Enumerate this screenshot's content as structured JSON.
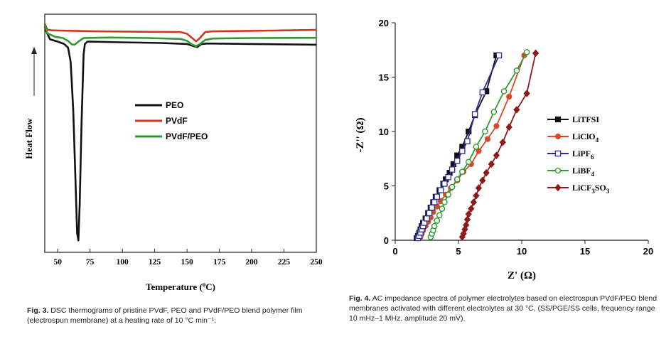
{
  "chart_data": [
    {
      "type": "line",
      "title": "",
      "xlabel": "Temperature (°C)",
      "ylabel": "Heat Flow",
      "xlim": [
        40,
        250
      ],
      "ylim": [
        0,
        1
      ],
      "y_ticks_shown": false,
      "x_ticks": [
        "50",
        "75",
        "100",
        "125",
        "150",
        "175",
        "200",
        "225",
        "250"
      ],
      "x_tick_values": [
        50,
        75,
        100,
        125,
        150,
        175,
        200,
        225,
        250
      ],
      "legend": "center-right",
      "grid": false,
      "series": [
        {
          "name": "PEO",
          "color": "#111111",
          "points": [
            [
              40,
              0.95
            ],
            [
              41,
              0.93
            ],
            [
              44,
              0.895
            ],
            [
              50,
              0.885
            ],
            [
              55,
              0.875
            ],
            [
              58,
              0.86
            ],
            [
              60,
              0.8
            ],
            [
              62,
              0.6
            ],
            [
              63.5,
              0.35
            ],
            [
              65,
              0.08
            ],
            [
              66,
              0.05
            ],
            [
              67,
              0.2
            ],
            [
              68.5,
              0.55
            ],
            [
              70,
              0.83
            ],
            [
              71,
              0.875
            ],
            [
              73,
              0.885
            ],
            [
              100,
              0.882
            ],
            [
              130,
              0.879
            ],
            [
              150,
              0.875
            ],
            [
              155,
              0.866
            ],
            [
              158,
              0.862
            ],
            [
              161,
              0.874
            ],
            [
              165,
              0.877
            ],
            [
              200,
              0.875
            ],
            [
              250,
              0.872
            ]
          ]
        },
        {
          "name": "PVdF",
          "color": "#cc3a1e",
          "points": [
            [
              40,
              0.96
            ],
            [
              42,
              0.935
            ],
            [
              46,
              0.932
            ],
            [
              80,
              0.928
            ],
            [
              120,
              0.926
            ],
            [
              145,
              0.925
            ],
            [
              150,
              0.918
            ],
            [
              154,
              0.9
            ],
            [
              157,
              0.886
            ],
            [
              160,
              0.9
            ],
            [
              164,
              0.925
            ],
            [
              170,
              0.928
            ],
            [
              200,
              0.93
            ],
            [
              250,
              0.934
            ]
          ]
        },
        {
          "name": "PVdF/PEO",
          "color": "#2f9a2f",
          "points": [
            [
              40,
              0.955
            ],
            [
              42,
              0.92
            ],
            [
              48,
              0.905
            ],
            [
              54,
              0.9
            ],
            [
              58,
              0.888
            ],
            [
              61,
              0.873
            ],
            [
              63,
              0.872
            ],
            [
              66,
              0.885
            ],
            [
              70,
              0.9
            ],
            [
              90,
              0.902
            ],
            [
              120,
              0.9
            ],
            [
              145,
              0.896
            ],
            [
              150,
              0.888
            ],
            [
              154,
              0.872
            ],
            [
              157,
              0.866
            ],
            [
              160,
              0.875
            ],
            [
              164,
              0.892
            ],
            [
              170,
              0.898
            ],
            [
              200,
              0.9
            ],
            [
              250,
              0.901
            ]
          ]
        }
      ],
      "annotations": [
        "up-arrow"
      ]
    },
    {
      "type": "scatter",
      "title": "",
      "xlabel": "Z' (Ω)",
      "ylabel": "-Z'' (Ω)",
      "xlim": [
        0,
        20
      ],
      "ylim": [
        0,
        20
      ],
      "x_ticks": [
        "0",
        "5",
        "10",
        "15",
        "20"
      ],
      "x_tick_values": [
        0,
        5,
        10,
        15,
        20
      ],
      "y_ticks": [
        "0",
        "5",
        "10",
        "15",
        "20"
      ],
      "y_tick_values": [
        0,
        5,
        10,
        15,
        20
      ],
      "legend": "center-right",
      "grid": false,
      "series": [
        {
          "name": "LiTFSI",
          "label_main": "LiTFSI",
          "label_sub": "",
          "label_tail": "",
          "label_sub2": "",
          "color": "#111111",
          "marker": "square-filled",
          "x": [
            1.7,
            1.8,
            1.9,
            2.0,
            2.1,
            2.2,
            2.4,
            2.6,
            2.8,
            3.0,
            3.2,
            3.5,
            3.8,
            4.0,
            4.3,
            4.6,
            4.9,
            5.3,
            5.8,
            6.3,
            7.2,
            8.0
          ],
          "y": [
            0.2,
            0.4,
            0.7,
            1.0,
            1.3,
            1.6,
            2.0,
            2.5,
            3.0,
            3.5,
            4.0,
            4.6,
            5.2,
            5.6,
            6.2,
            7.0,
            7.8,
            8.6,
            10.0,
            11.5,
            13.7,
            17.0
          ]
        },
        {
          "name": "LiClO4",
          "label_main": "LiClO",
          "label_sub": "4",
          "label_tail": "",
          "label_sub2": "",
          "color": "#d44a2a",
          "marker": "circle-filled",
          "x": [
            2.0,
            2.1,
            2.2,
            2.4,
            2.6,
            2.8,
            3.0,
            3.3,
            3.6,
            4.0,
            4.4,
            4.9,
            5.4,
            6.0,
            6.6,
            7.3,
            8.0,
            9.0,
            10.2
          ],
          "y": [
            0.3,
            0.6,
            0.9,
            1.3,
            1.7,
            2.1,
            2.6,
            3.1,
            3.6,
            4.2,
            4.8,
            5.5,
            6.3,
            7.0,
            8.2,
            9.3,
            10.5,
            13.2,
            17.0
          ]
        },
        {
          "name": "LiPF6",
          "label_main": "LiPF",
          "label_sub": "6",
          "label_tail": "",
          "label_sub2": "",
          "color": "#2d2d9a",
          "marker": "square-open",
          "x": [
            1.8,
            1.9,
            2.0,
            2.1,
            2.2,
            2.3,
            2.5,
            2.7,
            2.9,
            3.1,
            3.3,
            3.6,
            3.9,
            4.2,
            4.5,
            4.9,
            5.3,
            5.7,
            6.3,
            6.9,
            8.2
          ],
          "y": [
            0.2,
            0.4,
            0.7,
            1.0,
            1.3,
            1.6,
            2.0,
            2.5,
            3.0,
            3.5,
            4.0,
            4.6,
            5.2,
            5.8,
            6.5,
            7.3,
            8.2,
            9.1,
            11.6,
            13.6,
            17.0
          ]
        },
        {
          "name": "LiBF4",
          "label_main": "LiBF",
          "label_sub": "4",
          "label_tail": "",
          "label_sub2": "",
          "color": "#2f9a2f",
          "marker": "circle-open",
          "x": [
            2.8,
            2.9,
            3.0,
            3.1,
            3.3,
            3.5,
            3.7,
            3.9,
            4.2,
            4.5,
            4.9,
            5.3,
            5.8,
            6.4,
            7.1,
            7.8,
            8.6,
            9.6,
            10.4
          ],
          "y": [
            0.3,
            0.6,
            0.9,
            1.3,
            1.8,
            2.3,
            2.9,
            3.5,
            4.2,
            4.9,
            5.6,
            6.3,
            7.2,
            8.6,
            10.0,
            11.8,
            13.7,
            15.6,
            17.3
          ]
        },
        {
          "name": "LiCF3SO3",
          "label_main": "LiCF",
          "label_sub": "3",
          "label_tail": "SO",
          "label_sub2": "3",
          "color": "#8b1a1a",
          "marker": "diamond-filled",
          "x": [
            5.3,
            5.4,
            5.5,
            5.6,
            5.7,
            5.8,
            6.0,
            6.2,
            6.4,
            6.6,
            6.9,
            7.2,
            7.6,
            8.0,
            8.5,
            9.0,
            9.6,
            10.4,
            11.1
          ],
          "y": [
            0.3,
            0.6,
            1.0,
            1.4,
            1.9,
            2.4,
            2.9,
            3.5,
            4.1,
            4.8,
            5.5,
            6.2,
            7.0,
            7.8,
            9.0,
            10.4,
            12.0,
            13.5,
            17.2
          ]
        }
      ]
    }
  ],
  "captions": {
    "fig3": {
      "label": "Fig. 3.",
      "text": "DSC thermograms of pristine PVdF, PEO and PVdF/PEO blend polymer film (electrospun membrane) at a heating rate of 10 °C min⁻¹."
    },
    "fig4": {
      "label": "Fig. 4.",
      "text": "AC impedance spectra of polymer electrolytes based on electrospun PVdF/PEO blend membranes activated with different electrolytes at 30 °C, (SS/PGE/SS cells, frequency range 10 mHz–1 MHz, amplitude 20 mV)."
    }
  }
}
